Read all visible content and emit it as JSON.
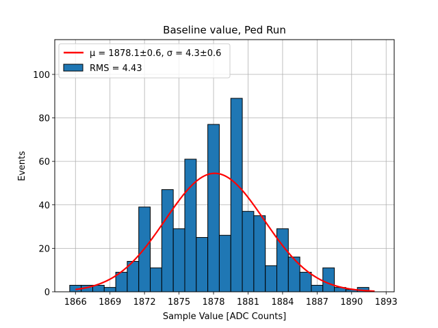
{
  "chart_data": {
    "type": "bar",
    "title": "Baseline value, Ped Run",
    "xlabel": "Sample Value [ADC Counts]",
    "ylabel": "Events",
    "xlim": [
      1864.2,
      1893.7
    ],
    "ylim": [
      0,
      116
    ],
    "xticks": [
      1866,
      1869,
      1872,
      1875,
      1878,
      1881,
      1884,
      1887,
      1890,
      1893
    ],
    "yticks": [
      0,
      20,
      40,
      60,
      80,
      100
    ],
    "grid": true,
    "legend_position": "top-left",
    "bin_edges": [
      1865.5,
      1866.5,
      1867.5,
      1868.5,
      1869.5,
      1870.5,
      1871.5,
      1872.5,
      1873.5,
      1874.5,
      1875.5,
      1876.5,
      1877.5,
      1878.5,
      1879.5,
      1880.5,
      1881.5,
      1882.5,
      1883.5,
      1884.5,
      1885.5,
      1886.5,
      1887.5,
      1888.5,
      1889.5,
      1890.5,
      1891.5
    ],
    "series": [
      {
        "name": "RMS = 4.43",
        "kind": "histogram",
        "color": "#1f77b4",
        "edgecolor": "#000000",
        "values": [
          3,
          3,
          3,
          2,
          9,
          14,
          39,
          11,
          47,
          29,
          61,
          25,
          77,
          26,
          89,
          37,
          35,
          12,
          29,
          16,
          9,
          3,
          11,
          2,
          1,
          2
        ]
      },
      {
        "name": "μ = 1878.1±0.6, σ = 4.3±0.6",
        "kind": "gaussian-fit",
        "color": "#ff0000",
        "mu": 1878.1,
        "sigma": 4.3,
        "amplitude": 54.5,
        "x_range": [
          1866,
          1892
        ]
      }
    ]
  }
}
